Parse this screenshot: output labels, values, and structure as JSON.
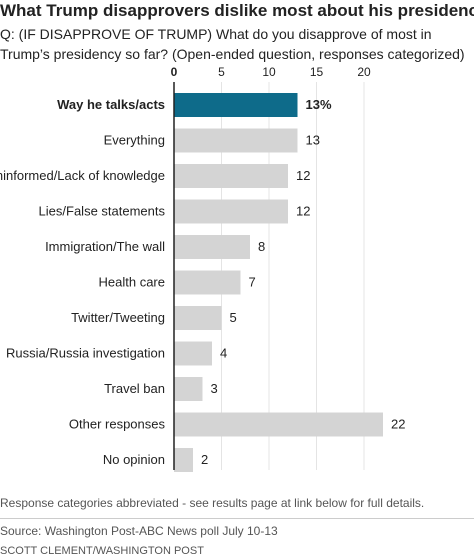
{
  "title": "What Trump disapprovers dislike most about his presidency",
  "question": "Q: (IF DISAPPROVE OF TRUMP) What do you disapprove of most in Trump’s presidency so far? (Open-ended question, responses categorized)",
  "note": "Response categories abbreviated - see results page at link below for full details.",
  "source": "Source: Washington Post-ABC News poll July 10-13",
  "credit": "SCOTT CLEMENT/WASHINGTON POST",
  "chart_data": {
    "type": "bar",
    "orientation": "horizontal",
    "categories": [
      "Way he talks/acts",
      "Everything",
      "Uninformed/Lack of knowledge",
      "Lies/False statements",
      "Immigration/The wall",
      "Health care",
      "Twitter/Tweeting",
      "Russia/Russia investigation",
      "Travel ban",
      "Other responses",
      "No opinion"
    ],
    "values": [
      13,
      13,
      12,
      12,
      8,
      7,
      5,
      4,
      3,
      22,
      2
    ],
    "value_labels": [
      "13%",
      "13",
      "12",
      "12",
      "8",
      "7",
      "5",
      "4",
      "3",
      "22",
      "2"
    ],
    "highlight_index": 0,
    "xticks": [
      0,
      5,
      10,
      15,
      20
    ],
    "xlim": [
      0,
      22
    ],
    "grid": true,
    "colors": {
      "highlight": "#0e6b8a",
      "bar": "#d4d4d4",
      "grid": "#e4e4e4",
      "baseline": "#222222"
    }
  }
}
